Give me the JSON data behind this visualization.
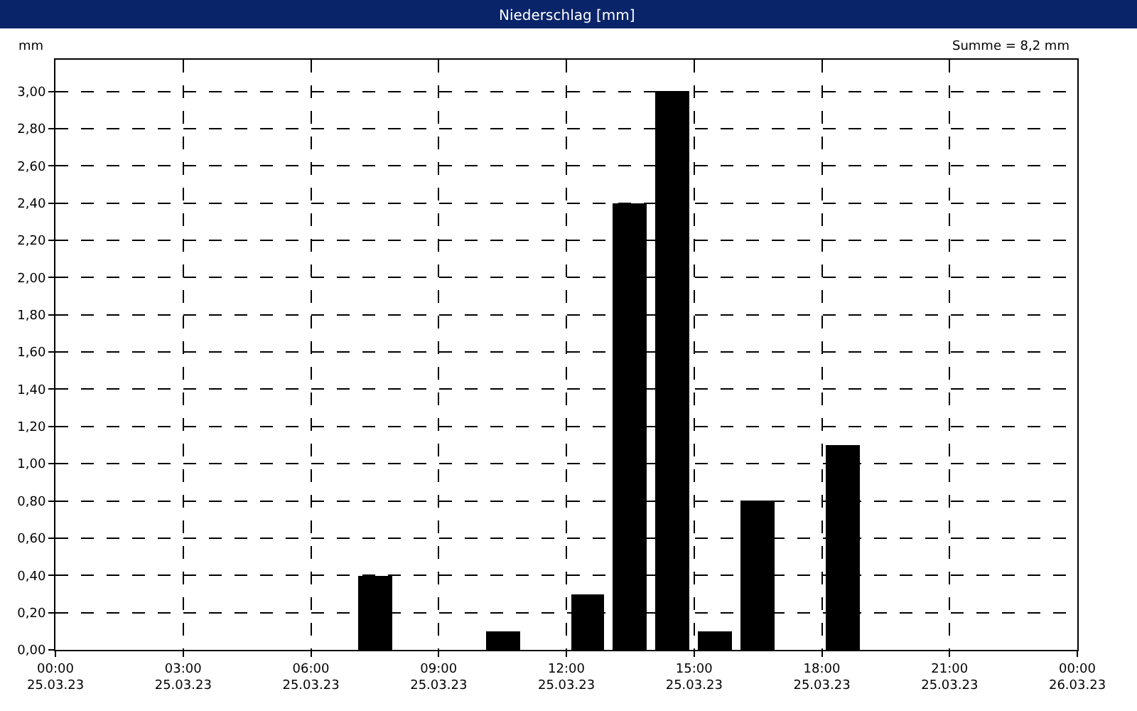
{
  "chart_data": {
    "type": "bar",
    "title": "Niederschlag [mm]",
    "ylabel": "mm",
    "annotations": [
      "Summe = 8,2 mm"
    ],
    "x": [
      "--03-25T07:30",
      "--03-25T10:30",
      "--03-25T12:30",
      "--03-25T13:30",
      "--03-25T14:30",
      "--03-25T15:30",
      "--03-25T16:30",
      "--03-25T18:30"
    ],
    "values": [
      0.4,
      0.1,
      0.3,
      2.4,
      3.0,
      0.1,
      0.8,
      1.1
    ],
    "color": "#000000",
    "xlim": [
      "--03-25T00:00",
      "--03-26T00:00"
    ],
    "xticks": [
      {
        "value": "--03-25T00:00",
        "label": "00:00\n25.03.23"
      },
      {
        "value": "--03-25T03:00",
        "label": "03:00\n25.03.23"
      },
      {
        "value": "--03-25T06:00",
        "label": "06:00\n25.03.23"
      },
      {
        "value": "--03-25T09:00",
        "label": "09:00\n25.03.23"
      },
      {
        "value": "--03-25T12:00",
        "label": "12:00\n25.03.23"
      },
      {
        "value": "--03-25T15:00",
        "label": "15:00\n25.03.23"
      },
      {
        "value": "--03-25T18:00",
        "label": "18:00\n25.03.23"
      },
      {
        "value": "--03-25T21:00",
        "label": "21:00\n25.03.23"
      },
      {
        "value": "--03-26T00:00",
        "label": "00:00\n26.03.23"
      }
    ],
    "ylim": [
      0,
      3.17
    ],
    "yticks": [
      {
        "value": 0,
        "label": "0,00"
      },
      {
        "value": 0.2,
        "label": "0,20"
      },
      {
        "value": 0.4,
        "label": "0,40"
      },
      {
        "value": 0.6,
        "label": "0,60"
      },
      {
        "value": 0.8,
        "label": "0,80"
      },
      {
        "value": 1.0,
        "label": "1,00"
      },
      {
        "value": 1.2,
        "label": "1,20"
      },
      {
        "value": 1.4,
        "label": "1,40"
      },
      {
        "value": 1.6,
        "label": "1,60"
      },
      {
        "value": 1.8,
        "label": "1,80"
      },
      {
        "value": 2.0,
        "label": "2,00"
      },
      {
        "value": 2.2,
        "label": "2,20"
      },
      {
        "value": 2.4,
        "label": "2,40"
      },
      {
        "value": 2.6,
        "label": "2,60"
      },
      {
        "value": 2.8,
        "label": "2,80"
      },
      {
        "value": 3.0,
        "label": "3,00"
      }
    ],
    "grid": true,
    "line_style": "dashed"
  }
}
